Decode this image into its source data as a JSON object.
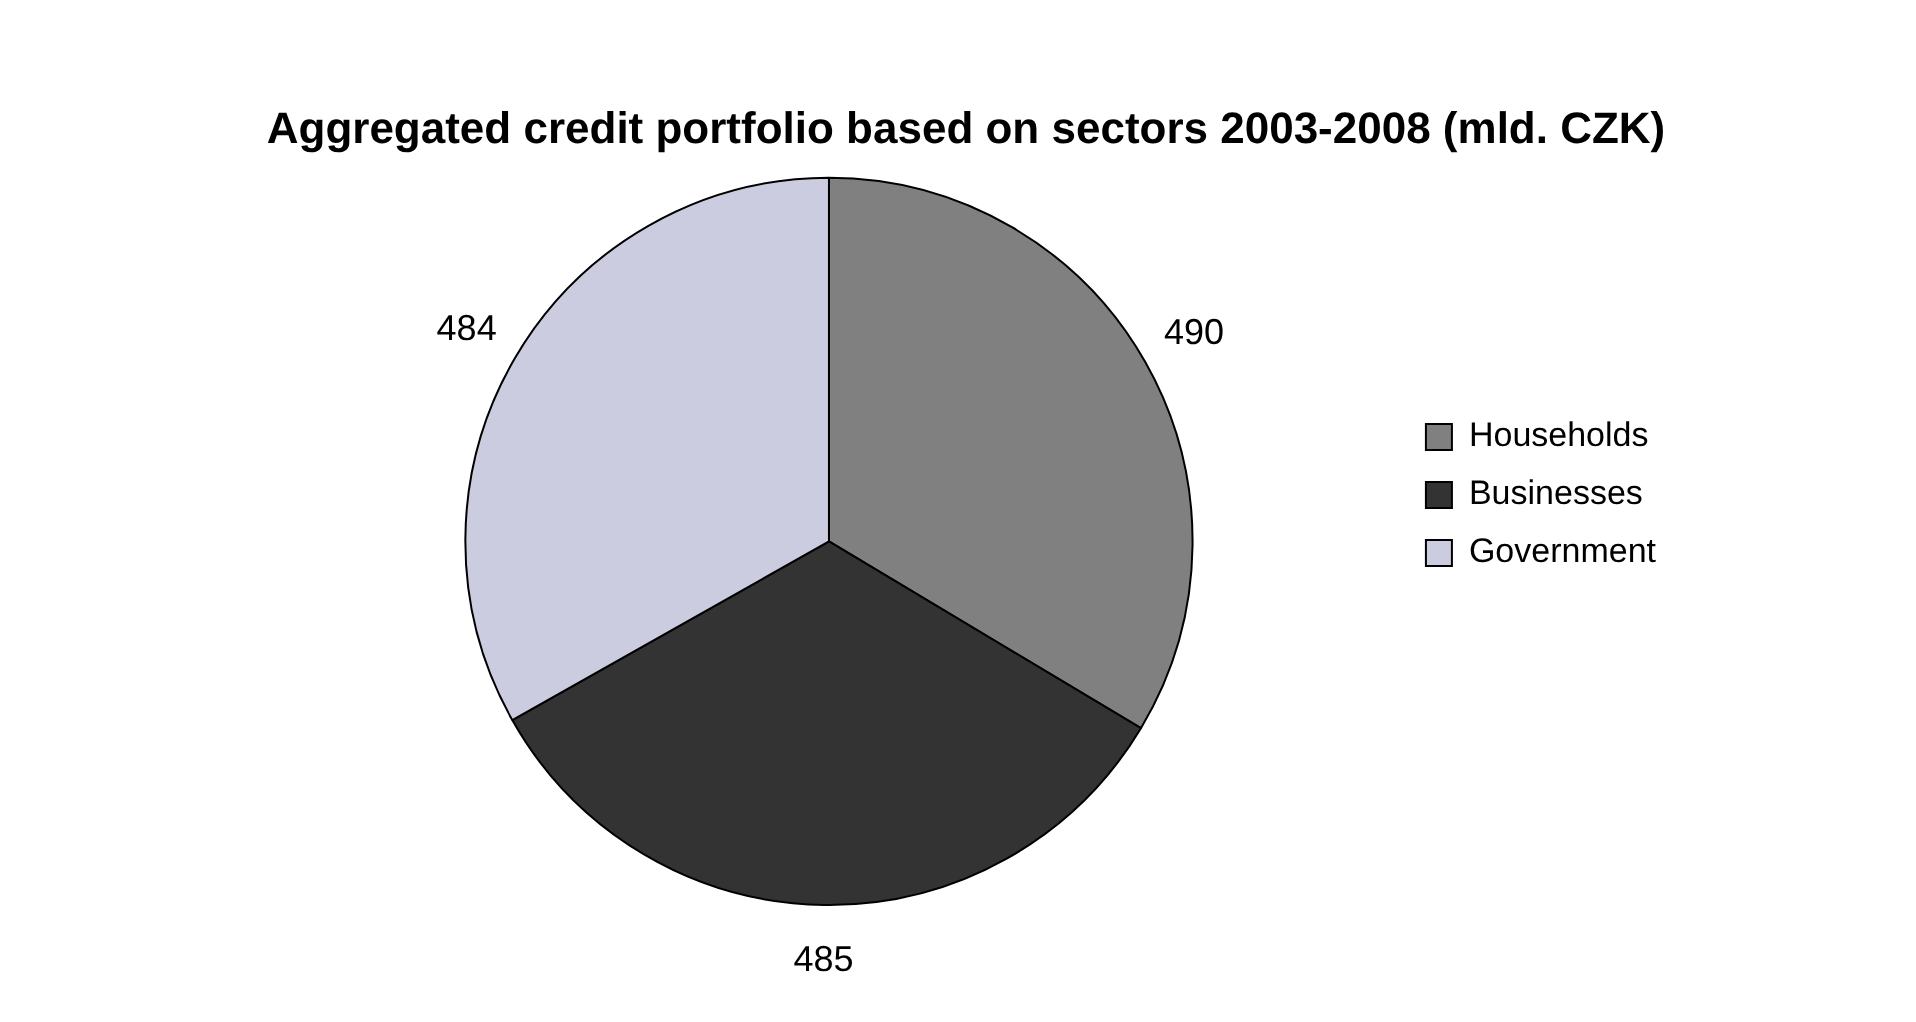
{
  "chart_data": {
    "type": "pie",
    "title": "Aggregated credit portfolio based on sectors 2003-2008 (mld. CZK)",
    "categories": [
      "Households",
      "Businesses",
      "Government"
    ],
    "values": [
      490,
      485,
      484
    ],
    "colors": [
      "#808080",
      "#333333",
      "#ccccE0"
    ],
    "data_labels": true,
    "legend": "right"
  }
}
